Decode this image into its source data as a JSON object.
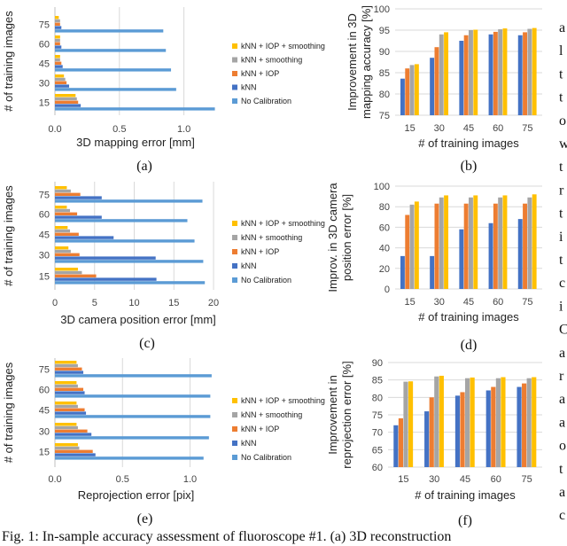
{
  "colors": {
    "kNN + IOP + smoothing": "#FFC000",
    "kNN + smoothing": "#A5A5A5",
    "kNN + IOP": "#ED7D31",
    "kNN": "#4472C4",
    "No Calibration": "#5B9BD5"
  },
  "margin_text": [
    "a",
    "l",
    "t",
    "t",
    "o",
    "w",
    "t",
    "r",
    "t",
    "i",
    "t",
    "c",
    "i",
    "C",
    "a",
    "r",
    "a",
    "a",
    "o",
    "t",
    "a",
    "c"
  ],
  "chart_data": [
    {
      "id": "a",
      "type": "bar",
      "orientation": "horizontal",
      "panel_label": "(a)",
      "xlabel": "3D mapping error [mm]",
      "ylabel": "# of training images",
      "xlim": [
        0,
        1.25
      ],
      "xticks": [
        "0.0",
        "0.5",
        "1.0"
      ],
      "xtick_values": [
        0,
        0.5,
        1.0
      ],
      "categories": [
        "15",
        "30",
        "45",
        "60",
        "75"
      ],
      "legend": [
        "kNN + IOP + smoothing",
        "kNN + smoothing",
        "kNN + IOP",
        "kNN",
        "No Calibration"
      ],
      "series": [
        {
          "name": "No Calibration",
          "values": [
            1.24,
            0.94,
            0.9,
            0.86,
            0.84
          ]
        },
        {
          "name": "kNN",
          "values": [
            0.2,
            0.11,
            0.06,
            0.05,
            0.05
          ]
        },
        {
          "name": "kNN + IOP",
          "values": [
            0.18,
            0.09,
            0.05,
            0.04,
            0.04
          ]
        },
        {
          "name": "kNN + smoothing",
          "values": [
            0.17,
            0.08,
            0.04,
            0.04,
            0.04
          ]
        },
        {
          "name": "kNN + IOP + smoothing",
          "values": [
            0.16,
            0.07,
            0.04,
            0.04,
            0.03
          ]
        }
      ]
    },
    {
      "id": "b",
      "type": "bar",
      "orientation": "vertical",
      "panel_label": "(b)",
      "xlabel": "# of training images",
      "ylabel": "Improvement in 3D mapping accuracy [%]",
      "ylabel_lines": [
        "Improvement in 3D",
        "mapping accuracy [%]"
      ],
      "ylim": [
        75,
        100
      ],
      "yticks": [
        75,
        80,
        85,
        90,
        95,
        100
      ],
      "categories": [
        "15",
        "30",
        "45",
        "60",
        "75"
      ],
      "series": [
        {
          "name": "kNN",
          "values": [
            83.6,
            88.5,
            92.5,
            94.0,
            93.8
          ]
        },
        {
          "name": "kNN + IOP",
          "values": [
            86.0,
            91.0,
            93.8,
            94.6,
            94.5
          ]
        },
        {
          "name": "kNN + smoothing",
          "values": [
            86.8,
            94.0,
            95.0,
            95.2,
            95.3
          ]
        },
        {
          "name": "kNN + IOP + smoothing",
          "values": [
            87.0,
            94.5,
            95.1,
            95.4,
            95.5
          ]
        }
      ]
    },
    {
      "id": "c",
      "type": "bar",
      "orientation": "horizontal",
      "panel_label": "(c)",
      "xlabel": "3D camera position error [mm]",
      "ylabel": "# of training images",
      "xlim": [
        0,
        21
      ],
      "xticks": [
        "0",
        "5",
        "10",
        "15",
        "20"
      ],
      "xtick_values": [
        0,
        5,
        10,
        15,
        20
      ],
      "categories": [
        "15",
        "30",
        "45",
        "60",
        "75"
      ],
      "legend": [
        "kNN + IOP + smoothing",
        "kNN + smoothing",
        "kNN + IOP",
        "kNN",
        "No Calibration"
      ],
      "series": [
        {
          "name": "No Calibration",
          "values": [
            18.9,
            18.7,
            17.6,
            16.7,
            18.6
          ]
        },
        {
          "name": "kNN",
          "values": [
            12.8,
            12.7,
            7.4,
            5.9,
            5.9
          ]
        },
        {
          "name": "kNN + IOP",
          "values": [
            5.2,
            3.1,
            3.0,
            2.8,
            3.2
          ]
        },
        {
          "name": "kNN + smoothing",
          "values": [
            3.4,
            2.0,
            1.9,
            1.9,
            2.0
          ]
        },
        {
          "name": "kNN + IOP + smoothing",
          "values": [
            2.9,
            1.7,
            1.6,
            1.5,
            1.5
          ]
        }
      ]
    },
    {
      "id": "d",
      "type": "bar",
      "orientation": "vertical",
      "panel_label": "(d)",
      "xlabel": "# of training images",
      "ylabel": "Improv. in 3D camera position error [%]",
      "ylabel_lines": [
        "Improv. in 3D camera",
        "position error [%]"
      ],
      "ylim": [
        0,
        100
      ],
      "yticks": [
        0,
        20,
        40,
        60,
        80,
        100
      ],
      "categories": [
        "15",
        "30",
        "45",
        "60",
        "75"
      ],
      "series": [
        {
          "name": "kNN",
          "values": [
            32,
            32,
            58,
            64,
            68
          ]
        },
        {
          "name": "kNN + IOP",
          "values": [
            72,
            83,
            83,
            83,
            83
          ]
        },
        {
          "name": "kNN + smoothing",
          "values": [
            82,
            89,
            89,
            89,
            89
          ]
        },
        {
          "name": "kNN + IOP + smoothing",
          "values": [
            85,
            91,
            91,
            91,
            92
          ]
        }
      ]
    },
    {
      "id": "e",
      "type": "bar",
      "orientation": "horizontal",
      "panel_label": "(e)",
      "xlabel": "Reprojection error [pix]",
      "ylabel": "# of training images",
      "xlim": [
        0,
        1.2
      ],
      "xticks": [
        "0.0",
        "0.5",
        "1.0"
      ],
      "xtick_values": [
        0,
        0.5,
        1.0
      ],
      "categories": [
        "15",
        "30",
        "45",
        "60",
        "75"
      ],
      "legend": [
        "kNN + IOP + smoothing",
        "kNN + smoothing",
        "kNN + IOP",
        "kNN",
        "No Calibration"
      ],
      "series": [
        {
          "name": "No Calibration",
          "values": [
            1.1,
            1.14,
            1.15,
            1.15,
            1.16
          ]
        },
        {
          "name": "kNN",
          "values": [
            0.3,
            0.27,
            0.23,
            0.22,
            0.21
          ]
        },
        {
          "name": "kNN + IOP",
          "values": [
            0.28,
            0.24,
            0.22,
            0.21,
            0.2
          ]
        },
        {
          "name": "kNN + smoothing",
          "values": [
            0.18,
            0.17,
            0.17,
            0.17,
            0.17
          ]
        },
        {
          "name": "kNN + IOP + smoothing",
          "values": [
            0.17,
            0.16,
            0.16,
            0.16,
            0.16
          ]
        }
      ]
    },
    {
      "id": "f",
      "type": "bar",
      "orientation": "vertical",
      "panel_label": "(f)",
      "xlabel": "# of training images",
      "ylabel": "Improvement in reprojection error [%]",
      "ylabel_lines": [
        "Improvement in",
        "reprojection error [%]"
      ],
      "ylim": [
        60,
        90
      ],
      "yticks": [
        60,
        65,
        70,
        75,
        80,
        85,
        90
      ],
      "categories": [
        "15",
        "30",
        "45",
        "60",
        "75"
      ],
      "series": [
        {
          "name": "kNN",
          "values": [
            72,
            76,
            80.5,
            82,
            83
          ]
        },
        {
          "name": "kNN + IOP",
          "values": [
            74,
            80,
            81.5,
            83,
            84
          ]
        },
        {
          "name": "kNN + smoothing",
          "values": [
            84.5,
            86,
            85.5,
            85.5,
            85.5
          ]
        },
        {
          "name": "kNN + IOP + smoothing",
          "values": [
            84.6,
            86.2,
            85.7,
            85.8,
            85.8
          ]
        }
      ]
    }
  ],
  "caption": "Fig. 1: In-sample accuracy assessment of fluoroscope #1. (a) 3D reconstruction"
}
